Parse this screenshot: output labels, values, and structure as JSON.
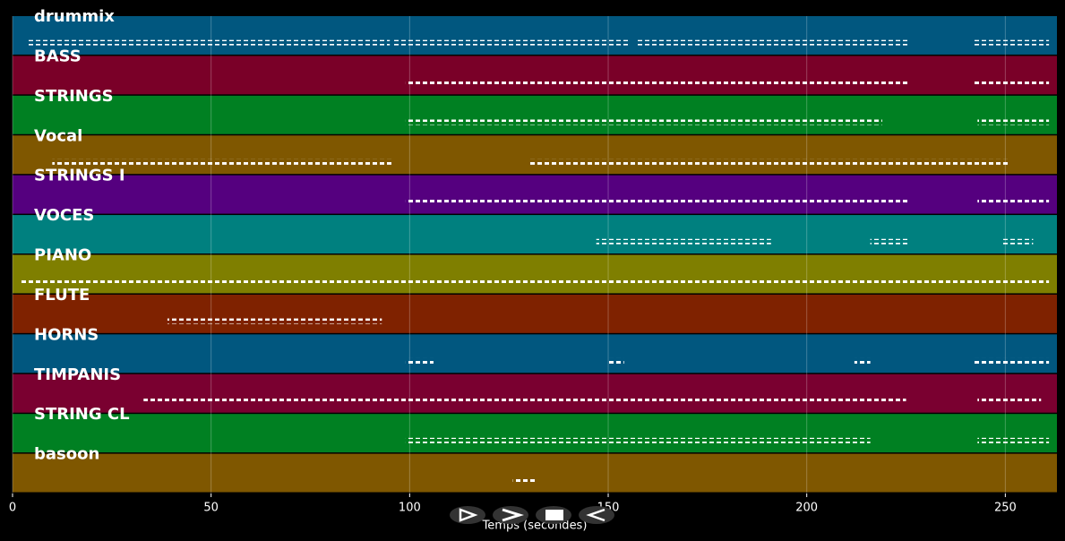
{
  "chart_data": {
    "type": "pianoroll",
    "xlabel": "Temps (secondes)",
    "xlim": [
      0,
      263
    ],
    "xticks": [
      0,
      50,
      100,
      150,
      200,
      250
    ],
    "grid": true,
    "tracks": [
      {
        "name": "drummix",
        "color": "#01577f",
        "segments": [
          [
            4,
            95
          ],
          [
            96,
            155
          ],
          [
            157,
            226
          ],
          [
            242,
            261
          ]
        ]
      },
      {
        "name": "BASS",
        "color": "#7a0028",
        "segments": [
          [
            99,
            226
          ],
          [
            242,
            261
          ]
        ]
      },
      {
        "name": "STRINGS",
        "color": "#008022",
        "segments": [
          [
            99,
            219
          ],
          [
            243,
            261
          ]
        ]
      },
      {
        "name": "Vocal",
        "color": "#7f5700",
        "segments": [
          [
            10,
            96
          ],
          [
            130,
            251
          ]
        ]
      },
      {
        "name": "STRINGS I",
        "color": "#55007f",
        "segments": [
          [
            99,
            226
          ],
          [
            243,
            261
          ]
        ]
      },
      {
        "name": "VOCES",
        "color": "#00807f",
        "segments": [
          [
            147,
            191
          ],
          [
            216,
            226
          ],
          [
            249,
            257
          ]
        ]
      },
      {
        "name": "PIANO",
        "color": "#7f7f00",
        "segments": [
          [
            2,
            261
          ]
        ]
      },
      {
        "name": "FLUTE",
        "color": "#7f2200",
        "segments": [
          [
            39,
            93
          ]
        ]
      },
      {
        "name": "HORNS",
        "color": "#01577f",
        "segments": [
          [
            99,
            106
          ],
          [
            150,
            154
          ],
          [
            212,
            216
          ],
          [
            242,
            261
          ]
        ]
      },
      {
        "name": "TIMPANIS",
        "color": "#7a0030",
        "segments": [
          [
            33,
            225
          ],
          [
            243,
            259
          ]
        ]
      },
      {
        "name": "STRING CL",
        "color": "#008022",
        "segments": [
          [
            99,
            216
          ],
          [
            243,
            261
          ]
        ]
      },
      {
        "name": "basoon",
        "color": "#7f5700",
        "segments": [
          [
            126,
            132
          ]
        ]
      }
    ]
  }
}
